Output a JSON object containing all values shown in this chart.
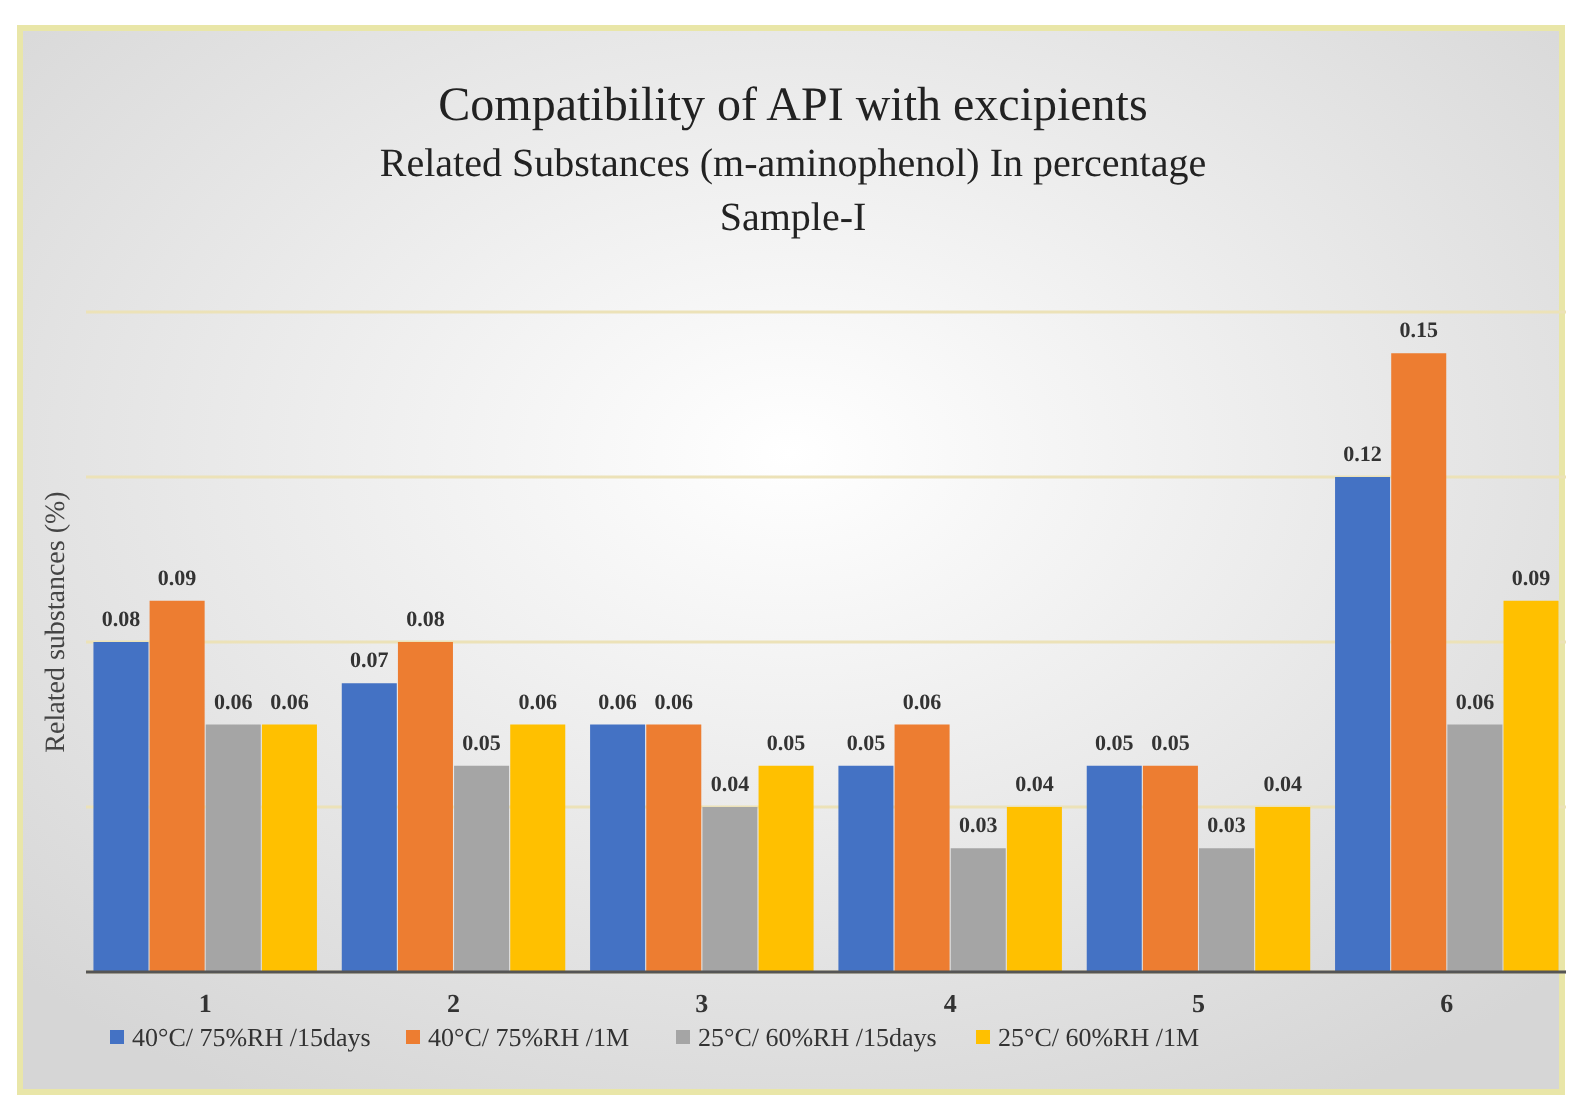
{
  "chart_data": {
    "type": "bar",
    "title": "Compatibility of API with excipients",
    "subtitle": "Related Substances (m-aminophenol) In percentage\nSample-I",
    "ylabel": "Related substances (%)",
    "categories": [
      "1",
      "2",
      "3",
      "4",
      "5",
      "6"
    ],
    "series": [
      {
        "name": "40°C/ 75%RH /15days",
        "color": "#4472c4",
        "values": [
          0.08,
          0.07,
          0.06,
          0.05,
          0.05,
          0.12
        ]
      },
      {
        "name": "40°C/ 75%RH /1M",
        "color": "#ed7d31",
        "values": [
          0.09,
          0.08,
          0.06,
          0.06,
          0.05,
          0.15
        ]
      },
      {
        "name": "25°C/ 60%RH /15days",
        "color": "#a5a5a5",
        "values": [
          0.06,
          0.05,
          0.04,
          0.03,
          0.03,
          0.06
        ]
      },
      {
        "name": "25°C/ 60%RH /1M",
        "color": "#ffc000",
        "values": [
          0.06,
          0.06,
          0.05,
          0.04,
          0.04,
          0.09
        ]
      }
    ],
    "ylim": [
      0,
      0.16
    ],
    "yticks": [
      {
        "value": 0,
        "label": null
      },
      {
        "value": 0.04,
        "label": null
      },
      {
        "value": 0.08,
        "label": null
      },
      {
        "value": 0.12,
        "label": null
      },
      {
        "value": 0.16,
        "label": null
      }
    ],
    "tick_labels": "x",
    "grid": true,
    "data_labels": true,
    "legend": "bottom"
  }
}
